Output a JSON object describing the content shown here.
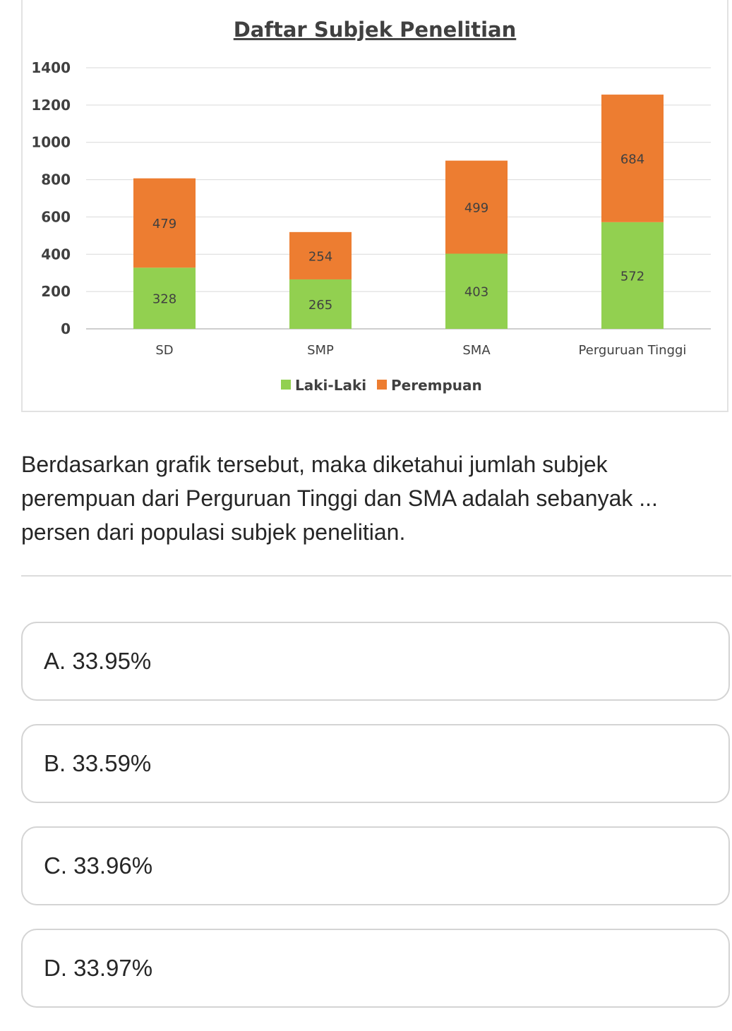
{
  "chart_data": {
    "type": "bar",
    "stacked": true,
    "title": "Daftar Subjek Penelitian",
    "categories": [
      "SD",
      "SMP",
      "SMA",
      "Perguruan Tinggi"
    ],
    "series": [
      {
        "name": "Laki-Laki",
        "values": [
          328,
          265,
          403,
          572
        ],
        "color": "#92d050"
      },
      {
        "name": "Perempuan",
        "values": [
          479,
          254,
          499,
          684
        ],
        "color": "#ed7d31"
      }
    ],
    "ylim": [
      0,
      1400
    ],
    "yticks": [
      "0",
      "200",
      "400",
      "600",
      "800",
      "1000",
      "1200",
      "1400"
    ],
    "grid": true,
    "legend_position": "bottom"
  },
  "question": {
    "text": "Berdasarkan grafik tersebut, maka diketahui jumlah subjek perempuan dari Perguruan Tinggi dan SMA adalah sebanyak ... persen dari populasi subjek penelitian."
  },
  "options": [
    {
      "label": "A. 33.95%"
    },
    {
      "label": "B. 33.59%"
    },
    {
      "label": "C. 33.96%"
    },
    {
      "label": "D. 33.97%"
    }
  ]
}
